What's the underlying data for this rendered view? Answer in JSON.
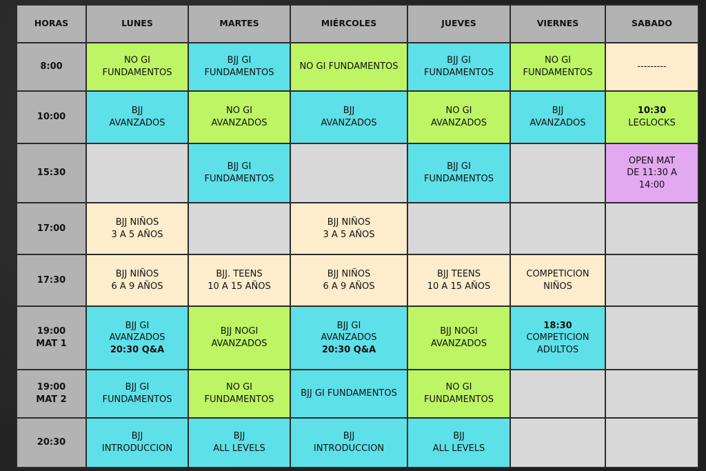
{
  "header": [
    "HORAS",
    "LUNES",
    "MARTES",
    "MIÉRCOLES",
    "JUEVES",
    "VIERNES",
    "SABADO"
  ],
  "colors": {
    "green": "#bdf565",
    "cyan": "#5ee0e8",
    "cream": "#fdedcc",
    "gray": "#d8d8d8",
    "purple": "#e2a8f0",
    "header": "#b3b3b3"
  },
  "rows": [
    {
      "hour": [
        "8:00"
      ],
      "cells": [
        {
          "color": "green",
          "lines": [
            "NO GI",
            "FUNDAMENTOS"
          ]
        },
        {
          "color": "cyan",
          "lines": [
            "BJJ GI",
            "FUNDAMENTOS"
          ]
        },
        {
          "color": "green",
          "lines": [
            "NO GI FUNDAMENTOS"
          ]
        },
        {
          "color": "cyan",
          "lines": [
            "BJJ GI",
            "FUNDAMENTOS"
          ]
        },
        {
          "color": "green",
          "lines": [
            "NO GI",
            "FUNDAMENTOS"
          ]
        },
        {
          "color": "cream",
          "lines": [
            "---------"
          ]
        }
      ]
    },
    {
      "hour": [
        "10:00"
      ],
      "cells": [
        {
          "color": "cyan",
          "lines": [
            "BJJ",
            "AVANZADOS"
          ]
        },
        {
          "color": "green",
          "lines": [
            "NO GI",
            "AVANZADOS"
          ]
        },
        {
          "color": "cyan",
          "lines": [
            "BJJ",
            "AVANZADOS"
          ]
        },
        {
          "color": "green",
          "lines": [
            "NO GI",
            "AVANZADOS"
          ]
        },
        {
          "color": "cyan",
          "lines": [
            "BJJ",
            "AVANZADOS"
          ]
        },
        {
          "color": "green",
          "lines": [
            "10:30",
            "LEGLOCKS"
          ],
          "bold": [
            0
          ]
        }
      ]
    },
    {
      "hour": [
        "15:30"
      ],
      "cells": [
        {
          "color": "gray",
          "lines": []
        },
        {
          "color": "cyan",
          "lines": [
            "BJJ GI",
            "FUNDAMENTOS"
          ]
        },
        {
          "color": "gray",
          "lines": []
        },
        {
          "color": "cyan",
          "lines": [
            "BJJ GI",
            "FUNDAMENTOS"
          ]
        },
        {
          "color": "gray",
          "lines": []
        },
        {
          "color": "purple",
          "lines": [
            "OPEN MAT",
            "DE 11:30 A",
            "14:00"
          ]
        }
      ]
    },
    {
      "hour": [
        "17:00"
      ],
      "cells": [
        {
          "color": "cream",
          "lines": [
            "BJJ NIÑOS",
            "3 A 5 AÑOS"
          ]
        },
        {
          "color": "gray",
          "lines": []
        },
        {
          "color": "cream",
          "lines": [
            "BJJ NIÑOS",
            "3 A 5 AÑOS"
          ]
        },
        {
          "color": "gray",
          "lines": []
        },
        {
          "color": "gray",
          "lines": []
        },
        {
          "color": "gray",
          "lines": []
        }
      ]
    },
    {
      "hour": [
        "17:30"
      ],
      "cells": [
        {
          "color": "cream",
          "lines": [
            "BJJ NIÑOS",
            "6 A 9 AÑOS"
          ]
        },
        {
          "color": "cream",
          "lines": [
            "BJJ. TEENS",
            "10 A 15 AÑOS"
          ]
        },
        {
          "color": "cream",
          "lines": [
            "BJJ NIÑOS",
            "6 A 9 AÑOS"
          ]
        },
        {
          "color": "cream",
          "lines": [
            "BJJ TEENS",
            "10 A 15 AÑOS"
          ]
        },
        {
          "color": "cream",
          "lines": [
            "COMPETICION",
            "NIÑOS"
          ]
        },
        {
          "color": "gray",
          "lines": []
        }
      ]
    },
    {
      "hour": [
        "19:00",
        "MAT 1"
      ],
      "cells": [
        {
          "color": "cyan",
          "lines": [
            "BJJ GI",
            "AVANZADOS",
            "20:30 Q&A"
          ],
          "bold": [
            2
          ]
        },
        {
          "color": "green",
          "lines": [
            "BJJ NOGI",
            "AVANZADOS"
          ]
        },
        {
          "color": "cyan",
          "lines": [
            "BJJ GI",
            "AVANZADOS",
            "20:30 Q&A"
          ],
          "bold": [
            2
          ]
        },
        {
          "color": "green",
          "lines": [
            "BJJ NOGI",
            "AVANZADOS"
          ]
        },
        {
          "color": "cyan",
          "lines": [
            "18:30",
            "COMPETICION",
            "ADULTOS"
          ],
          "bold": [
            0
          ]
        },
        {
          "color": "gray",
          "lines": []
        }
      ]
    },
    {
      "hour": [
        "19:00",
        "MAT 2"
      ],
      "cells": [
        {
          "color": "cyan",
          "lines": [
            "BJJ GI",
            "FUNDAMENTOS"
          ]
        },
        {
          "color": "green",
          "lines": [
            "NO GI",
            "FUNDAMENTOS"
          ]
        },
        {
          "color": "cyan",
          "lines": [
            "BJJ GI FUNDAMENTOS"
          ]
        },
        {
          "color": "green",
          "lines": [
            "NO GI",
            "FUNDAMENTOS"
          ]
        },
        {
          "color": "gray",
          "lines": []
        },
        {
          "color": "gray",
          "lines": []
        }
      ]
    },
    {
      "hour": [
        "20:30"
      ],
      "cells": [
        {
          "color": "cyan",
          "lines": [
            "BJJ",
            "INTRODUCCION"
          ]
        },
        {
          "color": "cyan",
          "lines": [
            "BJJ",
            "ALL LEVELS"
          ]
        },
        {
          "color": "cyan",
          "lines": [
            "BJJ",
            "INTRODUCCION"
          ]
        },
        {
          "color": "cyan",
          "lines": [
            "BJJ",
            "ALL LEVELS"
          ]
        },
        {
          "color": "gray",
          "lines": []
        },
        {
          "color": "gray",
          "lines": []
        }
      ]
    }
  ]
}
